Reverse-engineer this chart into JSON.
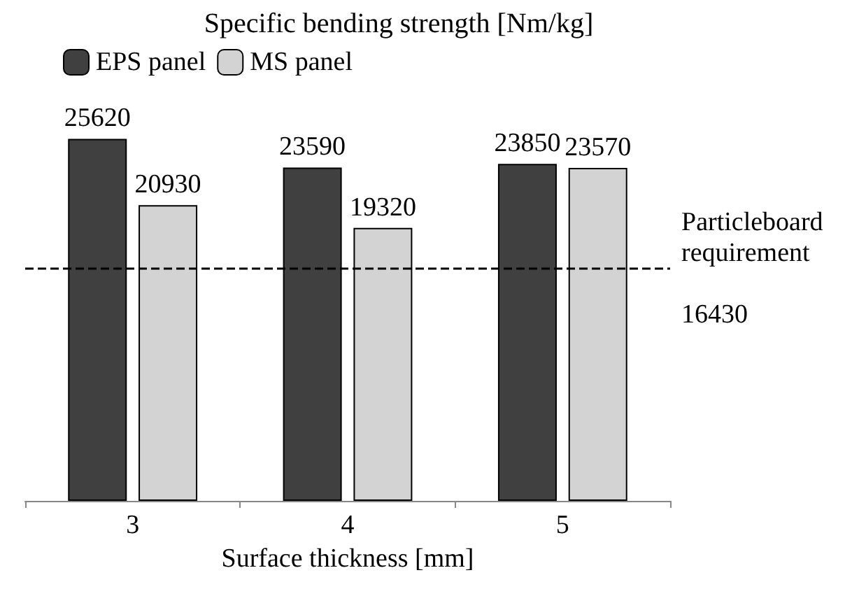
{
  "chart_data": {
    "type": "bar",
    "title": "Specific bending strength [Nm/kg]",
    "xlabel": "Surface thickness [mm]",
    "categories": [
      "3",
      "4",
      "5"
    ],
    "series": [
      {
        "name": "EPS panel",
        "color": "#404040",
        "values": [
          25620,
          23590,
          23850
        ]
      },
      {
        "name": "MS panel",
        "color": "#d3d3d3",
        "values": [
          20930,
          19320,
          23570
        ]
      }
    ],
    "data_labels": true,
    "legend": "top",
    "ref_lines": [
      {
        "axis": "y",
        "value": 16430,
        "label": "Particleboard requirement 16430",
        "line_style": "dashed",
        "color": "#000000"
      }
    ]
  }
}
